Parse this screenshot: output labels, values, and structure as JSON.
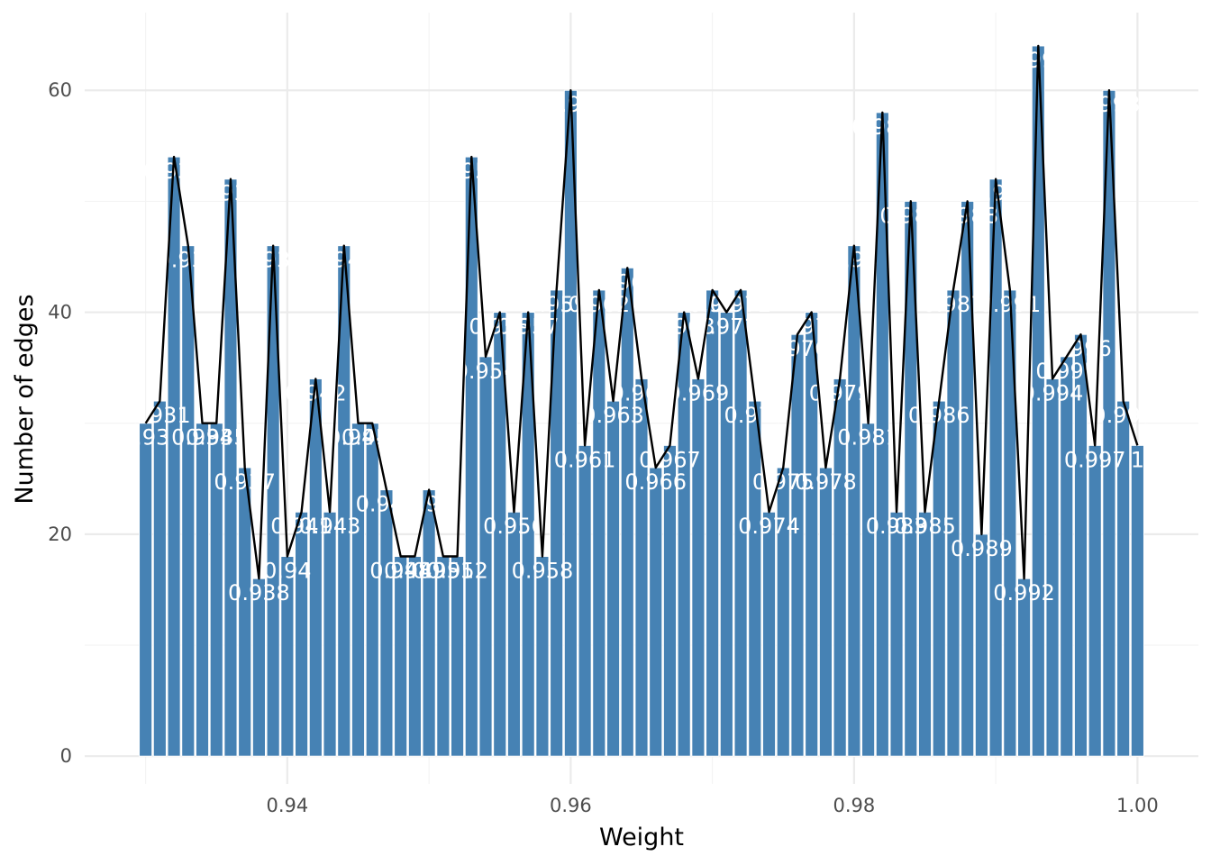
{
  "chart_data": {
    "type": "bar",
    "xlabel": "Weight",
    "ylabel": "Number of edges",
    "xlim": [
      0.9257,
      1.0043
    ],
    "ylim": [
      -2.5,
      67
    ],
    "x_ticks": [
      0.94,
      0.96,
      0.98,
      1.0
    ],
    "x_tick_labels": [
      "0.94",
      "0.96",
      "0.98",
      "1.00"
    ],
    "y_ticks": [
      0,
      20,
      40,
      60
    ],
    "y_tick_labels": [
      "0",
      "20",
      "40",
      "60"
    ],
    "bar_color": "#4682b4",
    "line_color": "#000000",
    "bar_label_color": "#ffffff",
    "grid": true,
    "overlay": "line through bar tops",
    "x": [
      0.93,
      0.931,
      0.932,
      0.933,
      0.934,
      0.935,
      0.936,
      0.937,
      0.938,
      0.939,
      0.94,
      0.941,
      0.942,
      0.943,
      0.944,
      0.945,
      0.946,
      0.947,
      0.948,
      0.949,
      0.95,
      0.951,
      0.952,
      0.953,
      0.954,
      0.955,
      0.956,
      0.957,
      0.958,
      0.959,
      0.96,
      0.961,
      0.962,
      0.963,
      0.964,
      0.965,
      0.966,
      0.967,
      0.968,
      0.969,
      0.97,
      0.971,
      0.972,
      0.973,
      0.974,
      0.975,
      0.976,
      0.977,
      0.978,
      0.979,
      0.98,
      0.981,
      0.982,
      0.983,
      0.984,
      0.985,
      0.986,
      0.987,
      0.988,
      0.989,
      0.99,
      0.991,
      0.992,
      0.993,
      0.994,
      0.995,
      0.996,
      0.997,
      0.998,
      0.999,
      1.0
    ],
    "values": [
      30,
      32,
      54,
      46,
      30,
      30,
      52,
      26,
      16,
      46,
      18,
      22,
      34,
      22,
      46,
      30,
      30,
      24,
      18,
      18,
      24,
      18,
      18,
      54,
      36,
      40,
      22,
      40,
      18,
      42,
      60,
      28,
      42,
      32,
      44,
      34,
      26,
      28,
      40,
      34,
      42,
      40,
      42,
      32,
      22,
      26,
      38,
      40,
      26,
      34,
      46,
      30,
      58,
      22,
      50,
      22,
      32,
      42,
      50,
      20,
      52,
      42,
      16,
      64,
      34,
      36,
      38,
      28,
      60,
      32,
      28
    ],
    "bar_labels": [
      "0.93",
      "0.931",
      "0.932",
      "0.933",
      "0.934",
      "0.935",
      "0.936",
      "0.937",
      "0.938",
      "0.939",
      "0.94",
      "0.941",
      "0.942",
      "0.943",
      "0.944",
      "0.945",
      "0.946",
      "0.947",
      "0.948",
      "0.949",
      "0.95",
      "0.951",
      "0.952",
      "0.953",
      "0.954",
      "0.955",
      "0.956",
      "0.957",
      "0.958",
      "0.959",
      "0.96",
      "0.961",
      "0.962",
      "0.963",
      "0.964",
      "0.965",
      "0.966",
      "0.967",
      "0.968",
      "0.969",
      "0.97",
      "0.971",
      "0.972",
      "0.973",
      "0.974",
      "0.975",
      "0.976",
      "0.977",
      "0.978",
      "0.979",
      "0.98",
      "0.981",
      "0.982",
      "0.983",
      "0.984",
      "0.985",
      "0.986",
      "0.987",
      "0.988",
      "0.989",
      "0.99",
      "0.991",
      "0.992",
      "0.993",
      "0.994",
      "0.995",
      "0.996",
      "0.997",
      "0.998",
      "0.999",
      "1"
    ]
  }
}
